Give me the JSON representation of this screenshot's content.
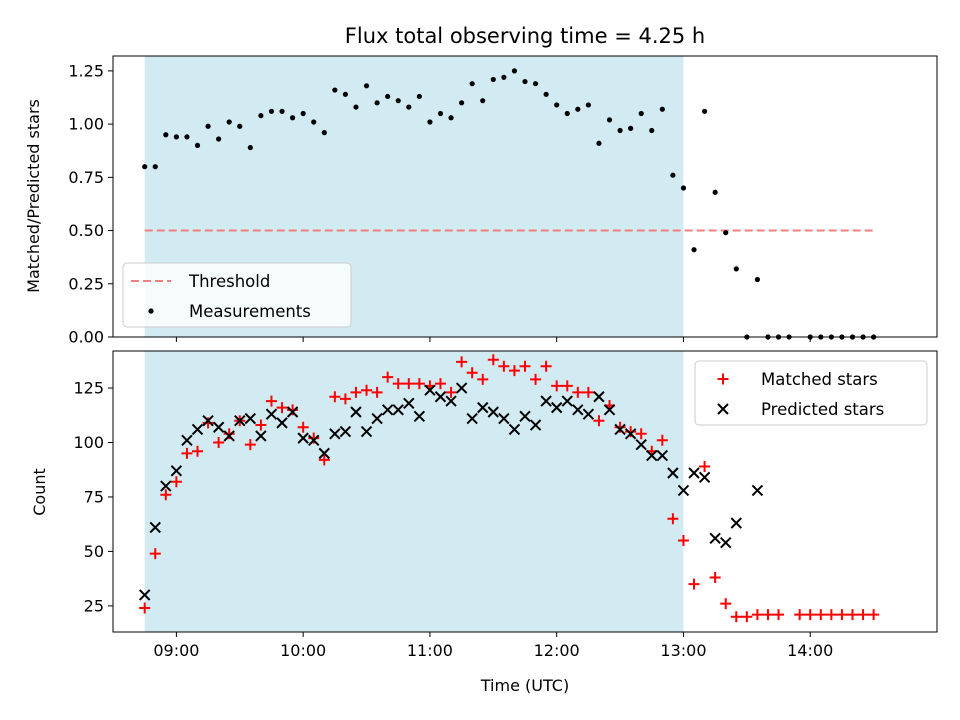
{
  "chart_data": {
    "title": "Flux total observing time = 4.25 h",
    "x_label": "Time (UTC)",
    "x_ticks": [
      "09:00",
      "10:00",
      "11:00",
      "12:00",
      "13:00",
      "14:00"
    ],
    "x_range": [
      "08:30",
      "15:00"
    ],
    "shaded_interval": [
      "08:45",
      "13:00"
    ],
    "shade_color": "#add8e6",
    "panels": [
      {
        "type": "scatter",
        "ylabel": "Matched/Predicted stars",
        "ylim": [
          0,
          1.32
        ],
        "y_ticks": [
          "0.00",
          "0.25",
          "0.50",
          "0.75",
          "1.00",
          "1.25"
        ],
        "threshold": {
          "name": "Threshold",
          "value": 0.5,
          "x_range": [
            "08:45",
            "14:30"
          ],
          "color": "#f07f7f"
        },
        "series": [
          {
            "name": "Measurements",
            "color": "#000000",
            "marker": "dot",
            "points": [
              [
                "08:45",
                0.8
              ],
              [
                "08:50",
                0.8
              ],
              [
                "08:55",
                0.95
              ],
              [
                "09:00",
                0.94
              ],
              [
                "09:05",
                0.94
              ],
              [
                "09:10",
                0.9
              ],
              [
                "09:15",
                0.99
              ],
              [
                "09:20",
                0.93
              ],
              [
                "09:25",
                1.01
              ],
              [
                "09:30",
                0.99
              ],
              [
                "09:35",
                0.89
              ],
              [
                "09:40",
                1.04
              ],
              [
                "09:45",
                1.06
              ],
              [
                "09:50",
                1.06
              ],
              [
                "09:55",
                1.03
              ],
              [
                "10:00",
                1.05
              ],
              [
                "10:05",
                1.01
              ],
              [
                "10:10",
                0.96
              ],
              [
                "10:15",
                1.16
              ],
              [
                "10:20",
                1.14
              ],
              [
                "10:25",
                1.08
              ],
              [
                "10:30",
                1.18
              ],
              [
                "10:35",
                1.1
              ],
              [
                "10:40",
                1.13
              ],
              [
                "10:45",
                1.11
              ],
              [
                "10:50",
                1.08
              ],
              [
                "10:55",
                1.13
              ],
              [
                "11:00",
                1.01
              ],
              [
                "11:05",
                1.05
              ],
              [
                "11:10",
                1.03
              ],
              [
                "11:15",
                1.1
              ],
              [
                "11:20",
                1.19
              ],
              [
                "11:25",
                1.11
              ],
              [
                "11:30",
                1.21
              ],
              [
                "11:35",
                1.22
              ],
              [
                "11:40",
                1.25
              ],
              [
                "11:45",
                1.2
              ],
              [
                "11:50",
                1.19
              ],
              [
                "11:55",
                1.14
              ],
              [
                "12:00",
                1.09
              ],
              [
                "12:05",
                1.05
              ],
              [
                "12:10",
                1.07
              ],
              [
                "12:15",
                1.09
              ],
              [
                "12:20",
                0.91
              ],
              [
                "12:25",
                1.02
              ],
              [
                "12:30",
                0.97
              ],
              [
                "12:35",
                0.98
              ],
              [
                "12:40",
                1.05
              ],
              [
                "12:45",
                0.97
              ],
              [
                "12:50",
                1.07
              ],
              [
                "12:55",
                0.76
              ],
              [
                "13:00",
                0.7
              ],
              [
                "13:05",
                0.41
              ],
              [
                "13:10",
                1.06
              ],
              [
                "13:15",
                0.68
              ],
              [
                "13:20",
                0.49
              ],
              [
                "13:25",
                0.32
              ],
              [
                "13:35",
                0.27
              ],
              [
                "13:30",
                0.0
              ],
              [
                "13:40",
                0.0
              ],
              [
                "13:45",
                0.0
              ],
              [
                "13:50",
                0.0
              ],
              [
                "14:00",
                0.0
              ],
              [
                "14:05",
                0.0
              ],
              [
                "14:10",
                0.0
              ],
              [
                "14:15",
                0.0
              ],
              [
                "14:20",
                0.0
              ],
              [
                "14:25",
                0.0
              ],
              [
                "14:30",
                0.0
              ]
            ]
          }
        ],
        "legend": {
          "position": "lower-left",
          "entries": [
            "Threshold",
            "Measurements"
          ]
        }
      },
      {
        "type": "scatter",
        "ylabel": "Count",
        "ylim": [
          13,
          142
        ],
        "y_ticks": [
          "25",
          "50",
          "75",
          "100",
          "125"
        ],
        "series": [
          {
            "name": "Matched stars",
            "color": "#ff0000",
            "marker": "plus",
            "points": [
              [
                "08:45",
                24
              ],
              [
                "08:50",
                49
              ],
              [
                "08:55",
                76
              ],
              [
                "09:00",
                82
              ],
              [
                "09:05",
                95
              ],
              [
                "09:10",
                96
              ],
              [
                "09:15",
                109
              ],
              [
                "09:20",
                100
              ],
              [
                "09:25",
                104
              ],
              [
                "09:30",
                110
              ],
              [
                "09:35",
                99
              ],
              [
                "09:40",
                108
              ],
              [
                "09:45",
                119
              ],
              [
                "09:50",
                116
              ],
              [
                "09:55",
                115
              ],
              [
                "10:00",
                107
              ],
              [
                "10:05",
                102
              ],
              [
                "10:10",
                92
              ],
              [
                "10:15",
                121
              ],
              [
                "10:20",
                120
              ],
              [
                "10:25",
                123
              ],
              [
                "10:30",
                124
              ],
              [
                "10:35",
                123
              ],
              [
                "10:40",
                130
              ],
              [
                "10:45",
                127
              ],
              [
                "10:50",
                127
              ],
              [
                "10:55",
                127
              ],
              [
                "11:00",
                126
              ],
              [
                "11:05",
                127
              ],
              [
                "11:10",
                123
              ],
              [
                "11:15",
                137
              ],
              [
                "11:20",
                132
              ],
              [
                "11:25",
                129
              ],
              [
                "11:30",
                138
              ],
              [
                "11:35",
                135
              ],
              [
                "11:40",
                133
              ],
              [
                "11:45",
                135
              ],
              [
                "11:50",
                129
              ],
              [
                "11:55",
                135
              ],
              [
                "12:00",
                126
              ],
              [
                "12:05",
                126
              ],
              [
                "12:10",
                123
              ],
              [
                "12:15",
                123
              ],
              [
                "12:20",
                110
              ],
              [
                "12:25",
                117
              ],
              [
                "12:30",
                107
              ],
              [
                "12:35",
                105
              ],
              [
                "12:40",
                104
              ],
              [
                "12:45",
                96
              ],
              [
                "12:50",
                101
              ],
              [
                "12:55",
                65
              ],
              [
                "13:00",
                55
              ],
              [
                "13:05",
                35
              ],
              [
                "13:10",
                89
              ],
              [
                "13:15",
                38
              ],
              [
                "13:20",
                26
              ],
              [
                "13:25",
                20
              ],
              [
                "13:30",
                20
              ],
              [
                "13:35",
                21
              ],
              [
                "13:40",
                21
              ],
              [
                "13:45",
                21
              ],
              [
                "13:55",
                21
              ],
              [
                "14:00",
                21
              ],
              [
                "14:05",
                21
              ],
              [
                "14:10",
                21
              ],
              [
                "14:15",
                21
              ],
              [
                "14:20",
                21
              ],
              [
                "14:25",
                21
              ],
              [
                "14:30",
                21
              ]
            ]
          },
          {
            "name": "Predicted stars",
            "color": "#000000",
            "marker": "x",
            "points": [
              [
                "08:45",
                30
              ],
              [
                "08:50",
                61
              ],
              [
                "08:55",
                80
              ],
              [
                "09:00",
                87
              ],
              [
                "09:05",
                101
              ],
              [
                "09:10",
                106
              ],
              [
                "09:15",
                110
              ],
              [
                "09:20",
                107
              ],
              [
                "09:25",
                103
              ],
              [
                "09:30",
                110
              ],
              [
                "09:35",
                111
              ],
              [
                "09:40",
                103
              ],
              [
                "09:45",
                113
              ],
              [
                "09:50",
                109
              ],
              [
                "09:55",
                114
              ],
              [
                "10:00",
                102
              ],
              [
                "10:05",
                101
              ],
              [
                "10:10",
                95
              ],
              [
                "10:15",
                104
              ],
              [
                "10:20",
                105
              ],
              [
                "10:25",
                114
              ],
              [
                "10:30",
                105
              ],
              [
                "10:35",
                111
              ],
              [
                "10:40",
                115
              ],
              [
                "10:45",
                115
              ],
              [
                "10:50",
                118
              ],
              [
                "10:55",
                112
              ],
              [
                "11:00",
                124
              ],
              [
                "11:05",
                121
              ],
              [
                "11:10",
                119
              ],
              [
                "11:15",
                125
              ],
              [
                "11:20",
                111
              ],
              [
                "11:25",
                116
              ],
              [
                "11:30",
                114
              ],
              [
                "11:35",
                111
              ],
              [
                "11:40",
                106
              ],
              [
                "11:45",
                112
              ],
              [
                "11:50",
                108
              ],
              [
                "11:55",
                119
              ],
              [
                "12:00",
                116
              ],
              [
                "12:05",
                119
              ],
              [
                "12:10",
                115
              ],
              [
                "12:15",
                113
              ],
              [
                "12:20",
                121
              ],
              [
                "12:25",
                115
              ],
              [
                "12:30",
                106
              ],
              [
                "12:35",
                104
              ],
              [
                "12:40",
                99
              ],
              [
                "12:45",
                94
              ],
              [
                "12:50",
                94
              ],
              [
                "12:55",
                86
              ],
              [
                "13:00",
                78
              ],
              [
                "13:05",
                86
              ],
              [
                "13:10",
                84
              ],
              [
                "13:15",
                56
              ],
              [
                "13:20",
                54
              ],
              [
                "13:25",
                63
              ],
              [
                "13:35",
                78
              ]
            ]
          }
        ],
        "legend": {
          "position": "upper-right",
          "entries": [
            "Matched stars",
            "Predicted stars"
          ]
        }
      }
    ]
  }
}
